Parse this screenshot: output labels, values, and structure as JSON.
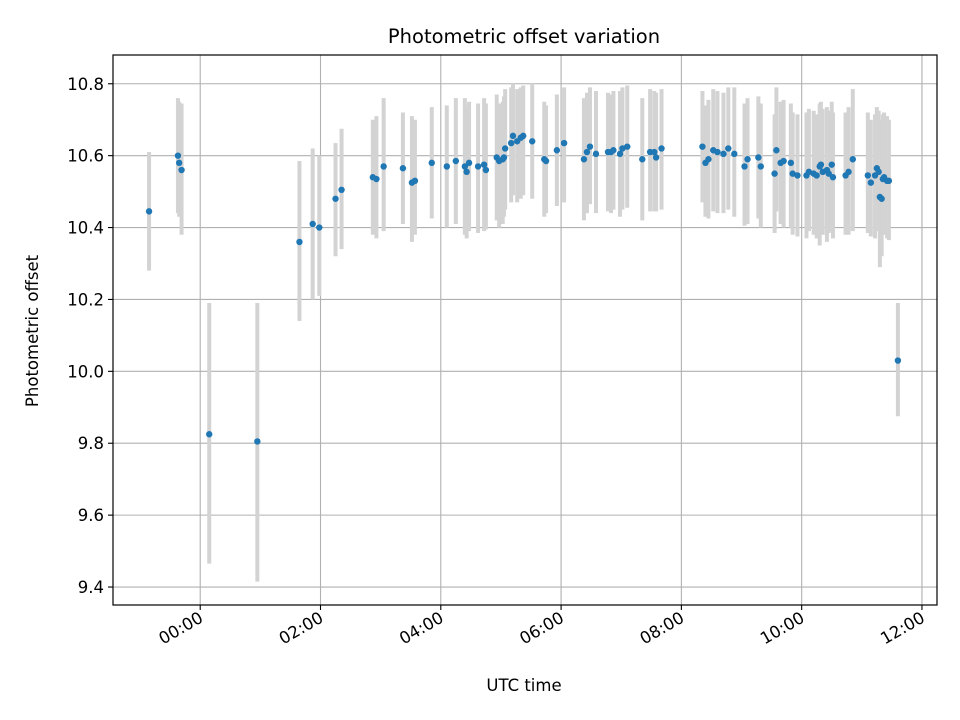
{
  "chart_data": {
    "type": "scatter",
    "title": "Photometric offset variation",
    "xlabel": "UTC time",
    "ylabel": "Photometric offset",
    "x_unit": "hours (UTC)",
    "xlim": [
      -1.45,
      12.25
    ],
    "ylim": [
      9.35,
      10.88
    ],
    "x_ticks": [
      0,
      2,
      4,
      6,
      8,
      10,
      12
    ],
    "x_tick_labels": [
      "00:00",
      "02:00",
      "04:00",
      "06:00",
      "08:00",
      "10:00",
      "12:00"
    ],
    "y_ticks": [
      9.4,
      9.6,
      9.8,
      10.0,
      10.2,
      10.4,
      10.6,
      10.8
    ],
    "y_tick_labels": [
      "9.4",
      "9.6",
      "9.8",
      "10.0",
      "10.2",
      "10.4",
      "10.6",
      "10.8"
    ],
    "grid": true,
    "point_color": "#1f77b4",
    "errorbar_color": "#d3d3d3",
    "points": [
      [
        -0.85,
        10.445,
        10.61,
        10.28
      ],
      [
        -0.37,
        10.6,
        10.76,
        10.44
      ],
      [
        -0.35,
        10.58,
        10.75,
        10.43
      ],
      [
        -0.31,
        10.56,
        10.745,
        10.38
      ],
      [
        0.15,
        9.825,
        10.19,
        9.465
      ],
      [
        0.95,
        9.805,
        10.19,
        9.415
      ],
      [
        1.65,
        10.36,
        10.585,
        10.14
      ],
      [
        1.87,
        10.41,
        10.62,
        10.2
      ],
      [
        1.98,
        10.4,
        10.6,
        10.21
      ],
      [
        2.25,
        10.48,
        10.635,
        10.32
      ],
      [
        2.35,
        10.505,
        10.675,
        10.34
      ],
      [
        2.87,
        10.54,
        10.7,
        10.38
      ],
      [
        2.93,
        10.535,
        10.71,
        10.37
      ],
      [
        3.05,
        10.57,
        10.76,
        10.39
      ],
      [
        3.37,
        10.565,
        10.72,
        10.41
      ],
      [
        3.52,
        10.525,
        10.71,
        10.36
      ],
      [
        3.57,
        10.53,
        10.7,
        10.38
      ],
      [
        3.85,
        10.58,
        10.735,
        10.425
      ],
      [
        4.1,
        10.57,
        10.74,
        10.4
      ],
      [
        4.25,
        10.585,
        10.76,
        10.41
      ],
      [
        4.4,
        10.57,
        10.76,
        10.38
      ],
      [
        4.43,
        10.555,
        10.74,
        10.37
      ],
      [
        4.47,
        10.58,
        10.75,
        10.39
      ],
      [
        4.62,
        10.57,
        10.745,
        10.385
      ],
      [
        4.72,
        10.575,
        10.76,
        10.39
      ],
      [
        4.75,
        10.56,
        10.745,
        10.395
      ],
      [
        4.93,
        10.595,
        10.77,
        10.42
      ],
      [
        4.97,
        10.585,
        10.745,
        10.4
      ],
      [
        5.03,
        10.59,
        10.75,
        10.41
      ],
      [
        5.05,
        10.595,
        10.765,
        10.43
      ],
      [
        5.07,
        10.62,
        10.785,
        10.45
      ],
      [
        5.17,
        10.635,
        10.79,
        10.47
      ],
      [
        5.2,
        10.655,
        10.8,
        10.49
      ],
      [
        5.27,
        10.64,
        10.785,
        10.47
      ],
      [
        5.33,
        10.65,
        10.79,
        10.48
      ],
      [
        5.37,
        10.655,
        10.795,
        10.49
      ],
      [
        5.52,
        10.64,
        10.8,
        10.48
      ],
      [
        5.72,
        10.59,
        10.75,
        10.43
      ],
      [
        5.75,
        10.585,
        10.74,
        10.44
      ],
      [
        5.93,
        10.615,
        10.77,
        10.46
      ],
      [
        6.05,
        10.635,
        10.79,
        10.47
      ],
      [
        6.38,
        10.59,
        10.76,
        10.42
      ],
      [
        6.43,
        10.61,
        10.775,
        10.44
      ],
      [
        6.48,
        10.625,
        10.79,
        10.465
      ],
      [
        6.58,
        10.605,
        10.78,
        10.44
      ],
      [
        6.78,
        10.61,
        10.775,
        10.445
      ],
      [
        6.83,
        10.61,
        10.77,
        10.44
      ],
      [
        6.87,
        10.615,
        10.78,
        10.45
      ],
      [
        6.98,
        10.605,
        10.78,
        10.43
      ],
      [
        7.02,
        10.62,
        10.79,
        10.45
      ],
      [
        7.1,
        10.625,
        10.795,
        10.455
      ],
      [
        7.35,
        10.59,
        10.76,
        10.42
      ],
      [
        7.48,
        10.61,
        10.785,
        10.445
      ],
      [
        7.55,
        10.61,
        10.78,
        10.445
      ],
      [
        7.58,
        10.595,
        10.775,
        10.445
      ],
      [
        7.67,
        10.62,
        10.785,
        10.45
      ],
      [
        8.35,
        10.625,
        10.78,
        10.47
      ],
      [
        8.4,
        10.58,
        10.74,
        10.43
      ],
      [
        8.45,
        10.59,
        10.755,
        10.425
      ],
      [
        8.53,
        10.615,
        10.785,
        10.445
      ],
      [
        8.6,
        10.61,
        10.78,
        10.44
      ],
      [
        8.7,
        10.605,
        10.775,
        10.44
      ],
      [
        8.78,
        10.62,
        10.79,
        10.45
      ],
      [
        8.88,
        10.605,
        10.79,
        10.43
      ],
      [
        9.05,
        10.57,
        10.745,
        10.405
      ],
      [
        9.1,
        10.59,
        10.76,
        10.41
      ],
      [
        9.28,
        10.595,
        10.765,
        10.425
      ],
      [
        9.32,
        10.57,
        10.745,
        10.4
      ],
      [
        9.55,
        10.55,
        10.715,
        10.385
      ],
      [
        9.58,
        10.615,
        10.79,
        10.445
      ],
      [
        9.65,
        10.58,
        10.75,
        10.41
      ],
      [
        9.7,
        10.585,
        10.755,
        10.4
      ],
      [
        9.82,
        10.58,
        10.745,
        10.4
      ],
      [
        9.85,
        10.55,
        10.72,
        10.38
      ],
      [
        9.93,
        10.545,
        10.715,
        10.375
      ],
      [
        10.08,
        10.545,
        10.72,
        10.37
      ],
      [
        10.12,
        10.555,
        10.73,
        10.39
      ],
      [
        10.2,
        10.55,
        10.725,
        10.38
      ],
      [
        10.25,
        10.545,
        10.715,
        10.37
      ],
      [
        10.3,
        10.57,
        10.745,
        10.35
      ],
      [
        10.32,
        10.575,
        10.75,
        10.39
      ],
      [
        10.35,
        10.555,
        10.73,
        10.38
      ],
      [
        10.42,
        10.56,
        10.735,
        10.36
      ],
      [
        10.45,
        10.55,
        10.725,
        10.385
      ],
      [
        10.5,
        10.575,
        10.75,
        10.39
      ],
      [
        10.52,
        10.54,
        10.72,
        10.37
      ],
      [
        10.73,
        10.545,
        10.72,
        10.38
      ],
      [
        10.78,
        10.555,
        10.735,
        10.38
      ],
      [
        10.85,
        10.59,
        10.785,
        10.39
      ],
      [
        11.1,
        10.545,
        10.72,
        10.385
      ],
      [
        11.15,
        10.525,
        10.7,
        10.375
      ],
      [
        11.22,
        10.545,
        10.715,
        10.37
      ],
      [
        11.25,
        10.565,
        10.735,
        10.39
      ],
      [
        11.28,
        10.555,
        10.725,
        10.39
      ],
      [
        11.3,
        10.485,
        10.7,
        10.29
      ],
      [
        11.33,
        10.48,
        10.68,
        10.32
      ],
      [
        11.35,
        10.535,
        10.715,
        10.38
      ],
      [
        11.37,
        10.54,
        10.72,
        10.38
      ],
      [
        11.42,
        10.53,
        10.71,
        10.37
      ],
      [
        11.45,
        10.53,
        10.7,
        10.365
      ],
      [
        11.6,
        10.03,
        10.19,
        9.875
      ]
    ]
  }
}
